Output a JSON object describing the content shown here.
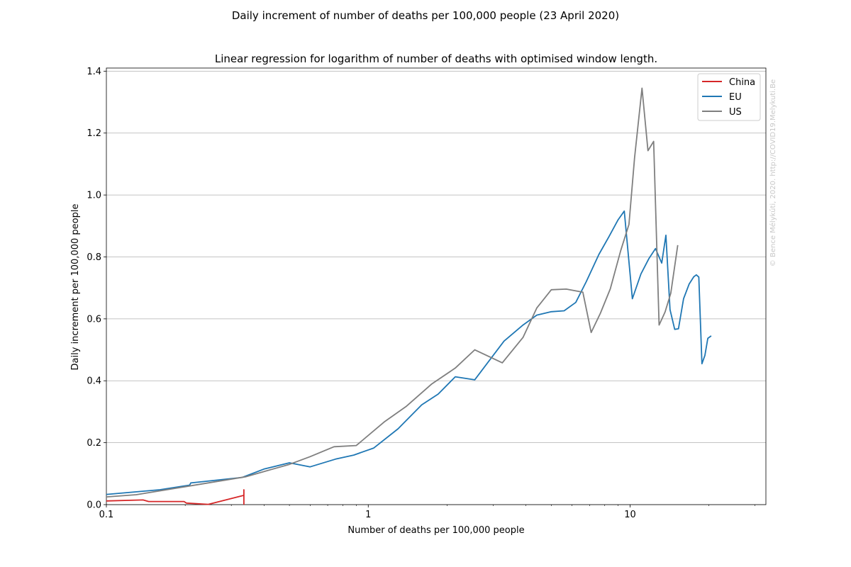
{
  "suptitle": "Daily increment of number of deaths per 100,000 people (23 April 2020)",
  "chart_data": {
    "type": "line",
    "title": "Linear regression for logarithm of number of deaths with optimised window length.",
    "xlabel": "Number of deaths per 100,000 people",
    "ylabel": "Daily increment per 100,000 people",
    "xscale": "log",
    "xlim": [
      0.1,
      33
    ],
    "ylim": [
      0,
      1.41
    ],
    "x_ticks": [
      0.1,
      1,
      10
    ],
    "x_tick_labels": [
      "0.1",
      "1",
      "10"
    ],
    "y_ticks": [
      0.0,
      0.2,
      0.4,
      0.6,
      0.8,
      1.0,
      1.2,
      1.4
    ],
    "y_tick_labels": [
      "0.0",
      "0.2",
      "0.4",
      "0.6",
      "0.8",
      "1.0",
      "1.2",
      "1.4"
    ],
    "grid": "horizontal",
    "legend_position": "top-right",
    "series": [
      {
        "name": "China",
        "color": "#d62728",
        "points": [
          [
            0.1,
            0.012
          ],
          [
            0.138,
            0.015
          ],
          [
            0.145,
            0.01
          ],
          [
            0.198,
            0.01
          ],
          [
            0.202,
            0.005
          ],
          [
            0.245,
            0.001
          ],
          [
            0.335,
            0.03
          ],
          [
            0.335,
            0.048
          ],
          [
            0.335,
            0.0
          ]
        ]
      },
      {
        "name": "EU",
        "color": "#1f77b4",
        "points": [
          [
            0.1,
            0.033
          ],
          [
            0.16,
            0.048
          ],
          [
            0.208,
            0.063
          ],
          [
            0.21,
            0.07
          ],
          [
            0.33,
            0.088
          ],
          [
            0.4,
            0.115
          ],
          [
            0.5,
            0.135
          ],
          [
            0.6,
            0.122
          ],
          [
            0.75,
            0.147
          ],
          [
            0.88,
            0.16
          ],
          [
            1.05,
            0.183
          ],
          [
            1.3,
            0.245
          ],
          [
            1.6,
            0.322
          ],
          [
            1.85,
            0.357
          ],
          [
            2.15,
            0.413
          ],
          [
            2.55,
            0.403
          ],
          [
            3.3,
            0.528
          ],
          [
            3.9,
            0.58
          ],
          [
            4.4,
            0.612
          ],
          [
            5.0,
            0.623
          ],
          [
            5.6,
            0.626
          ],
          [
            6.2,
            0.653
          ],
          [
            6.8,
            0.72
          ],
          [
            7.6,
            0.808
          ],
          [
            8.3,
            0.865
          ],
          [
            9.0,
            0.92
          ],
          [
            9.5,
            0.948
          ],
          [
            10.2,
            0.665
          ],
          [
            11.0,
            0.745
          ],
          [
            11.8,
            0.795
          ],
          [
            12.5,
            0.827
          ],
          [
            13.2,
            0.78
          ],
          [
            13.7,
            0.87
          ],
          [
            14.2,
            0.63
          ],
          [
            14.8,
            0.566
          ],
          [
            15.3,
            0.568
          ],
          [
            16.0,
            0.665
          ],
          [
            16.8,
            0.712
          ],
          [
            17.5,
            0.736
          ],
          [
            17.9,
            0.742
          ],
          [
            18.3,
            0.735
          ],
          [
            18.8,
            0.455
          ],
          [
            19.3,
            0.482
          ],
          [
            19.8,
            0.537
          ],
          [
            20.4,
            0.545
          ]
        ]
      },
      {
        "name": "US",
        "color": "#7f7f7f",
        "points": [
          [
            0.1,
            0.025
          ],
          [
            0.13,
            0.032
          ],
          [
            0.2,
            0.058
          ],
          [
            0.34,
            0.09
          ],
          [
            0.5,
            0.13
          ],
          [
            0.6,
            0.155
          ],
          [
            0.74,
            0.187
          ],
          [
            0.9,
            0.191
          ],
          [
            1.15,
            0.267
          ],
          [
            1.4,
            0.318
          ],
          [
            1.75,
            0.39
          ],
          [
            2.15,
            0.441
          ],
          [
            2.55,
            0.5
          ],
          [
            3.25,
            0.458
          ],
          [
            3.9,
            0.54
          ],
          [
            4.4,
            0.635
          ],
          [
            5.0,
            0.694
          ],
          [
            5.7,
            0.696
          ],
          [
            6.6,
            0.686
          ],
          [
            7.1,
            0.556
          ],
          [
            7.7,
            0.618
          ],
          [
            8.4,
            0.697
          ],
          [
            9.2,
            0.82
          ],
          [
            9.9,
            0.905
          ],
          [
            10.4,
            1.12
          ],
          [
            11.1,
            1.345
          ],
          [
            11.7,
            1.143
          ],
          [
            12.3,
            1.173
          ],
          [
            12.9,
            0.58
          ],
          [
            13.6,
            0.622
          ],
          [
            14.3,
            0.683
          ],
          [
            15.2,
            0.838
          ]
        ]
      }
    ]
  },
  "watermark": "© Bence Mélykúti, 2020. http://COVID19.Melykuti.Be"
}
